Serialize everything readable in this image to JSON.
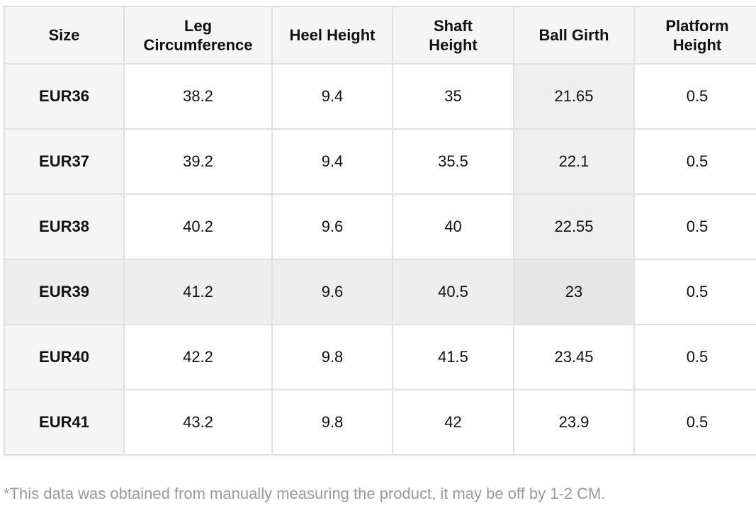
{
  "table": {
    "headers": [
      {
        "line1": "Size",
        "line2": ""
      },
      {
        "line1": "Leg",
        "line2": "Circumference"
      },
      {
        "line1": "Heel Height",
        "line2": ""
      },
      {
        "line1": "Shaft",
        "line2": "Height"
      },
      {
        "line1": "Ball Girth",
        "line2": ""
      },
      {
        "line1": "Platform",
        "line2": "Height"
      }
    ],
    "rows": [
      {
        "size": "EUR36",
        "leg": "38.2",
        "heel": "9.4",
        "shaft": "35",
        "ball": "21.65",
        "platform": "0.5"
      },
      {
        "size": "EUR37",
        "leg": "39.2",
        "heel": "9.4",
        "shaft": "35.5",
        "ball": "22.1",
        "platform": "0.5"
      },
      {
        "size": "EUR38",
        "leg": "40.2",
        "heel": "9.6",
        "shaft": "40",
        "ball": "22.55",
        "platform": "0.5"
      },
      {
        "size": "EUR39",
        "leg": "41.2",
        "heel": "9.6",
        "shaft": "40.5",
        "ball": "23",
        "platform": "0.5"
      },
      {
        "size": "EUR40",
        "leg": "42.2",
        "heel": "9.8",
        "shaft": "41.5",
        "ball": "23.45",
        "platform": "0.5"
      },
      {
        "size": "EUR41",
        "leg": "43.2",
        "heel": "9.8",
        "shaft": "42",
        "ball": "23.9",
        "platform": "0.5"
      }
    ]
  },
  "note": "*This data was obtained from manually measuring the product, it may be off by 1-2 CM.",
  "colors": {
    "header_bg": "#f5f5f5",
    "highlight_row_bg": "#eeeeee",
    "highlight_col_bg": "#efefef",
    "border": "#e0e0e0",
    "note_text": "#9a9a9a"
  }
}
